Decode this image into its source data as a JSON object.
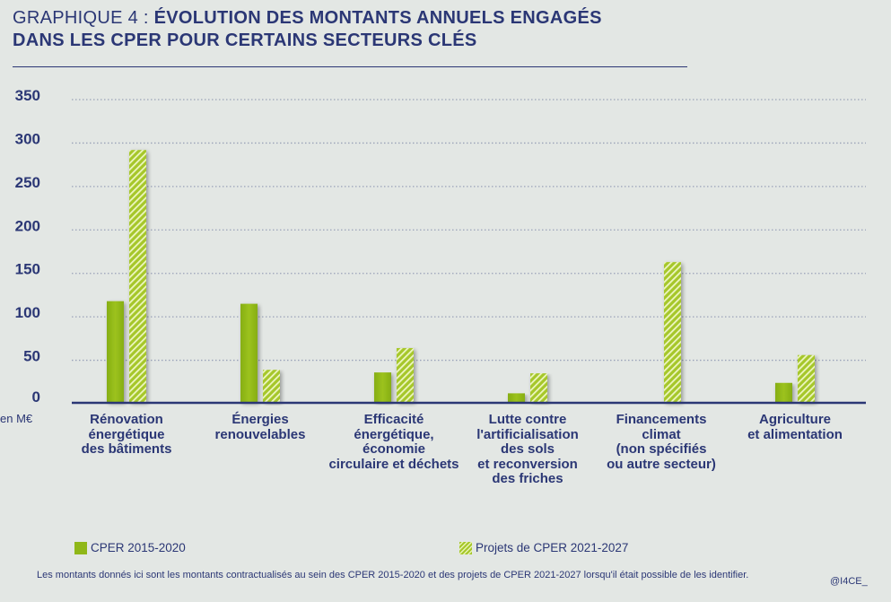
{
  "title": {
    "prefix": "GRAPHIQUE 4 : ",
    "main_line1": "ÉVOLUTION DES MONTANTS ANNUELS ENGAGÉS",
    "main_line2": "DANS LES CPER POUR CERTAINS SECTEURS CLÉS"
  },
  "colors": {
    "navy": "#2b3775",
    "green": "#8fb718",
    "hatch_light": "#e8f3b5",
    "background": "#e3e7e4"
  },
  "chart_data": {
    "type": "bar",
    "title": "GRAPHIQUE 4 : ÉVOLUTION DES MONTANTS ANNUELS ENGAGÉS DANS LES CPER POUR CERTAINS SECTEURS CLÉS",
    "xlabel": "",
    "ylabel": "en M€",
    "ylim": [
      0,
      350
    ],
    "yticks": [
      0,
      50,
      100,
      150,
      200,
      250,
      300,
      350
    ],
    "grid": true,
    "legend_position": "bottom",
    "categories": [
      "Rénovation\nénergétique\ndes bâtiments",
      "Énergies\nrenouvelables",
      "Efficacité\nénergétique,\néconomie\ncirculaire et déchets",
      "Lutte contre\nl'artificialisation\ndes sols\net reconversion\ndes friches",
      "Financements\nclimat\n(non spécifiés\nou autre secteur)",
      "Agriculture\net alimentation"
    ],
    "series": [
      {
        "name": "CPER 2015-2020",
        "style": "solid",
        "values": [
          118,
          115,
          36,
          12,
          1,
          24
        ]
      },
      {
        "name": "Projets de CPER 2021-2027",
        "style": "hatched",
        "values": [
          292,
          39,
          64,
          35,
          163,
          56
        ]
      }
    ]
  },
  "unit_label": "en M€",
  "legend": [
    {
      "label": "CPER 2015-2020"
    },
    {
      "label": "Projets de CPER 2021-2027"
    }
  ],
  "note": "Les montants donnés ici sont les montants contractualisés au sein des CPER 2015-2020 et des projets de CPER 2021-2027 lorsqu'il était possible de les identifier.",
  "credit": "@I4CE_"
}
